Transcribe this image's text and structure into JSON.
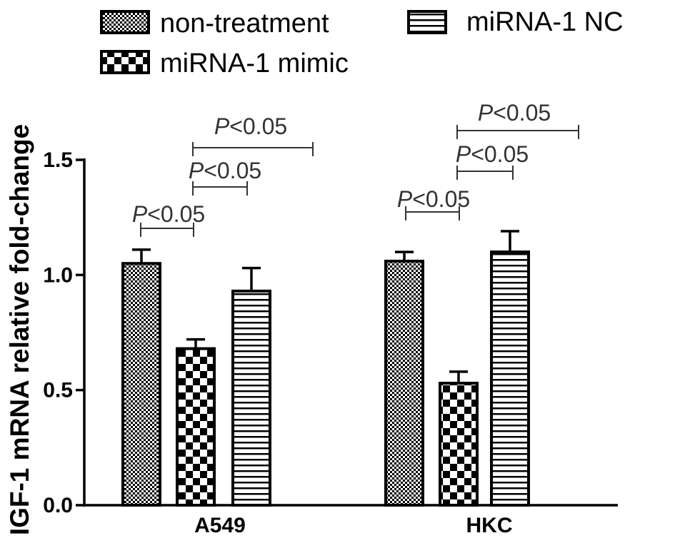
{
  "chart_data": {
    "type": "bar",
    "title": "",
    "xlabel": "",
    "ylabel": "IGF-1 mRNA relative fold-change",
    "categories": [
      "A549",
      "HKC"
    ],
    "series": [
      {
        "name": "non-treatment",
        "pattern": "fine-checker",
        "values": [
          1.05,
          1.06
        ],
        "errors": [
          0.06,
          0.04
        ]
      },
      {
        "name": "miRNA-1 mimic",
        "pattern": "coarse-checker",
        "values": [
          0.68,
          0.53
        ],
        "errors": [
          0.04,
          0.05
        ]
      },
      {
        "name": "miRNA-1 NC",
        "pattern": "horizontal-stripes",
        "values": [
          0.93,
          1.1
        ],
        "errors": [
          0.1,
          0.09
        ]
      }
    ],
    "ylim": [
      0,
      1.5
    ],
    "yticks": [
      "0.0",
      "0.5",
      "1.0",
      "1.5"
    ],
    "grid": false,
    "error_bars": true,
    "legend_position": "top",
    "annotations": [
      {
        "symbol": "P",
        "text": "<0.05"
      },
      {
        "symbol": "P",
        "text": "<0.05"
      },
      {
        "symbol": "P",
        "text": "<0.05"
      },
      {
        "symbol": "P",
        "text": "<0.05"
      },
      {
        "symbol": "P",
        "text": "<0.05"
      },
      {
        "symbol": "P",
        "text": "<0.05"
      }
    ]
  },
  "colors": {
    "ink": "#000000",
    "annotation": "#333333",
    "background": "#ffffff"
  }
}
